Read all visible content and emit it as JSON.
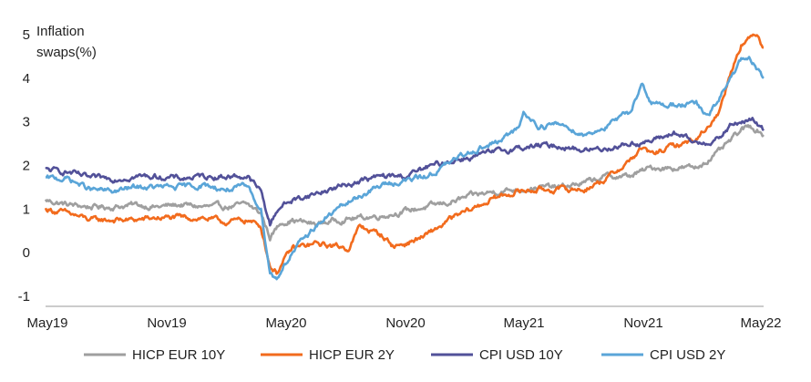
{
  "chart_data": {
    "type": "line",
    "ylabel_lines": [
      "Inflation",
      "swaps(%)"
    ],
    "ylim": [
      -1,
      5
    ],
    "yticks": [
      5,
      4,
      3,
      2,
      1,
      0,
      -1
    ],
    "xticks": [
      "May19",
      "Nov19",
      "May20",
      "Nov20",
      "May21",
      "Nov21",
      "May22"
    ],
    "grid": false,
    "legend_position": "bottom",
    "series": [
      {
        "name": "HICP EUR 10Y",
        "color": "#9f9f9f",
        "points": [
          [
            0,
            1.2
          ],
          [
            1,
            1.1
          ],
          [
            2,
            1.05
          ],
          [
            3,
            1.05
          ],
          [
            4,
            1.1
          ],
          [
            5,
            1.05
          ],
          [
            6,
            1.1
          ],
          [
            7,
            1.05
          ],
          [
            8,
            1.05
          ],
          [
            9,
            1.1
          ],
          [
            9.6,
            0.9
          ],
          [
            10,
            0.35
          ],
          [
            10.5,
            0.7
          ],
          [
            11,
            0.75
          ],
          [
            12,
            0.65
          ],
          [
            13,
            0.75
          ],
          [
            14,
            0.8
          ],
          [
            15,
            0.85
          ],
          [
            16,
            0.95
          ],
          [
            17,
            1.05
          ],
          [
            18,
            1.15
          ],
          [
            19,
            1.3
          ],
          [
            20,
            1.4
          ],
          [
            21,
            1.45
          ],
          [
            22,
            1.5
          ],
          [
            23,
            1.5
          ],
          [
            24,
            1.6
          ],
          [
            25,
            1.75
          ],
          [
            26,
            1.75
          ],
          [
            27,
            1.95
          ],
          [
            28,
            1.95
          ],
          [
            29,
            1.95
          ],
          [
            30,
            2.3
          ],
          [
            31,
            2.8
          ],
          [
            31.4,
            2.9
          ],
          [
            31.8,
            2.8
          ],
          [
            32,
            2.7
          ]
        ]
      },
      {
        "name": "HICP EUR 2Y",
        "color": "#f26b1d",
        "points": [
          [
            0,
            1.0
          ],
          [
            1,
            0.9
          ],
          [
            2,
            0.75
          ],
          [
            3,
            0.75
          ],
          [
            4,
            0.75
          ],
          [
            5,
            0.8
          ],
          [
            6,
            0.8
          ],
          [
            7,
            0.8
          ],
          [
            8,
            0.7
          ],
          [
            9,
            0.75
          ],
          [
            9.6,
            0.6
          ],
          [
            10,
            -0.3
          ],
          [
            10.3,
            -0.45
          ],
          [
            10.6,
            -0.2
          ],
          [
            11,
            0.1
          ],
          [
            12,
            0.2
          ],
          [
            13,
            0.15
          ],
          [
            13.5,
            0.1
          ],
          [
            14,
            0.6
          ],
          [
            15,
            0.4
          ],
          [
            15.5,
            0.15
          ],
          [
            16,
            0.2
          ],
          [
            17,
            0.4
          ],
          [
            18,
            0.75
          ],
          [
            19,
            1.0
          ],
          [
            20,
            1.25
          ],
          [
            21,
            1.4
          ],
          [
            22,
            1.45
          ],
          [
            23,
            1.45
          ],
          [
            24,
            1.45
          ],
          [
            25,
            1.7
          ],
          [
            26,
            2.1
          ],
          [
            26.6,
            2.4
          ],
          [
            27,
            2.25
          ],
          [
            28,
            2.45
          ],
          [
            29,
            2.6
          ],
          [
            30,
            3.2
          ],
          [
            30.5,
            4.1
          ],
          [
            31,
            4.8
          ],
          [
            31.4,
            4.9
          ],
          [
            31.7,
            5.05
          ],
          [
            32,
            4.7
          ]
        ]
      },
      {
        "name": "CPI USD 10Y",
        "color": "#525199",
        "points": [
          [
            0,
            1.9
          ],
          [
            1,
            1.85
          ],
          [
            2,
            1.7
          ],
          [
            3,
            1.7
          ],
          [
            4,
            1.75
          ],
          [
            5,
            1.75
          ],
          [
            6,
            1.7
          ],
          [
            7,
            1.75
          ],
          [
            8,
            1.75
          ],
          [
            9,
            1.75
          ],
          [
            9.6,
            1.4
          ],
          [
            10,
            0.65
          ],
          [
            10.4,
            1.05
          ],
          [
            11,
            1.2
          ],
          [
            12,
            1.35
          ],
          [
            13,
            1.5
          ],
          [
            14,
            1.65
          ],
          [
            15,
            1.75
          ],
          [
            16,
            1.75
          ],
          [
            17,
            1.95
          ],
          [
            18,
            2.1
          ],
          [
            19,
            2.2
          ],
          [
            20,
            2.3
          ],
          [
            21,
            2.4
          ],
          [
            22,
            2.45
          ],
          [
            23,
            2.45
          ],
          [
            24,
            2.35
          ],
          [
            25,
            2.4
          ],
          [
            26,
            2.5
          ],
          [
            27,
            2.55
          ],
          [
            28,
            2.75
          ],
          [
            29,
            2.5
          ],
          [
            30,
            2.6
          ],
          [
            30.5,
            2.9
          ],
          [
            31,
            3.0
          ],
          [
            31.5,
            3.05
          ],
          [
            32,
            2.8
          ]
        ]
      },
      {
        "name": "CPI USD 2Y",
        "color": "#5aa5d8",
        "points": [
          [
            0,
            1.7
          ],
          [
            1,
            1.7
          ],
          [
            2,
            1.45
          ],
          [
            3,
            1.4
          ],
          [
            4,
            1.5
          ],
          [
            5,
            1.5
          ],
          [
            6,
            1.5
          ],
          [
            7,
            1.55
          ],
          [
            8,
            1.45
          ],
          [
            9,
            1.5
          ],
          [
            9.6,
            1.0
          ],
          [
            10,
            -0.45
          ],
          [
            10.3,
            -0.6
          ],
          [
            10.6,
            -0.3
          ],
          [
            11,
            0.0
          ],
          [
            12,
            0.6
          ],
          [
            13,
            1.0
          ],
          [
            14,
            1.3
          ],
          [
            15,
            1.55
          ],
          [
            16,
            1.65
          ],
          [
            17,
            1.75
          ],
          [
            18,
            2.05
          ],
          [
            19,
            2.35
          ],
          [
            20,
            2.5
          ],
          [
            21,
            2.8
          ],
          [
            21.3,
            3.2
          ],
          [
            22,
            2.9
          ],
          [
            23,
            2.95
          ],
          [
            24,
            2.7
          ],
          [
            25,
            2.9
          ],
          [
            26,
            3.2
          ],
          [
            26.6,
            3.9
          ],
          [
            27,
            3.4
          ],
          [
            28,
            3.4
          ],
          [
            29,
            3.4
          ],
          [
            29.5,
            3.1
          ],
          [
            30,
            3.5
          ],
          [
            30.5,
            4.0
          ],
          [
            31,
            4.4
          ],
          [
            31.4,
            4.4
          ],
          [
            32,
            4.0
          ]
        ]
      }
    ]
  }
}
